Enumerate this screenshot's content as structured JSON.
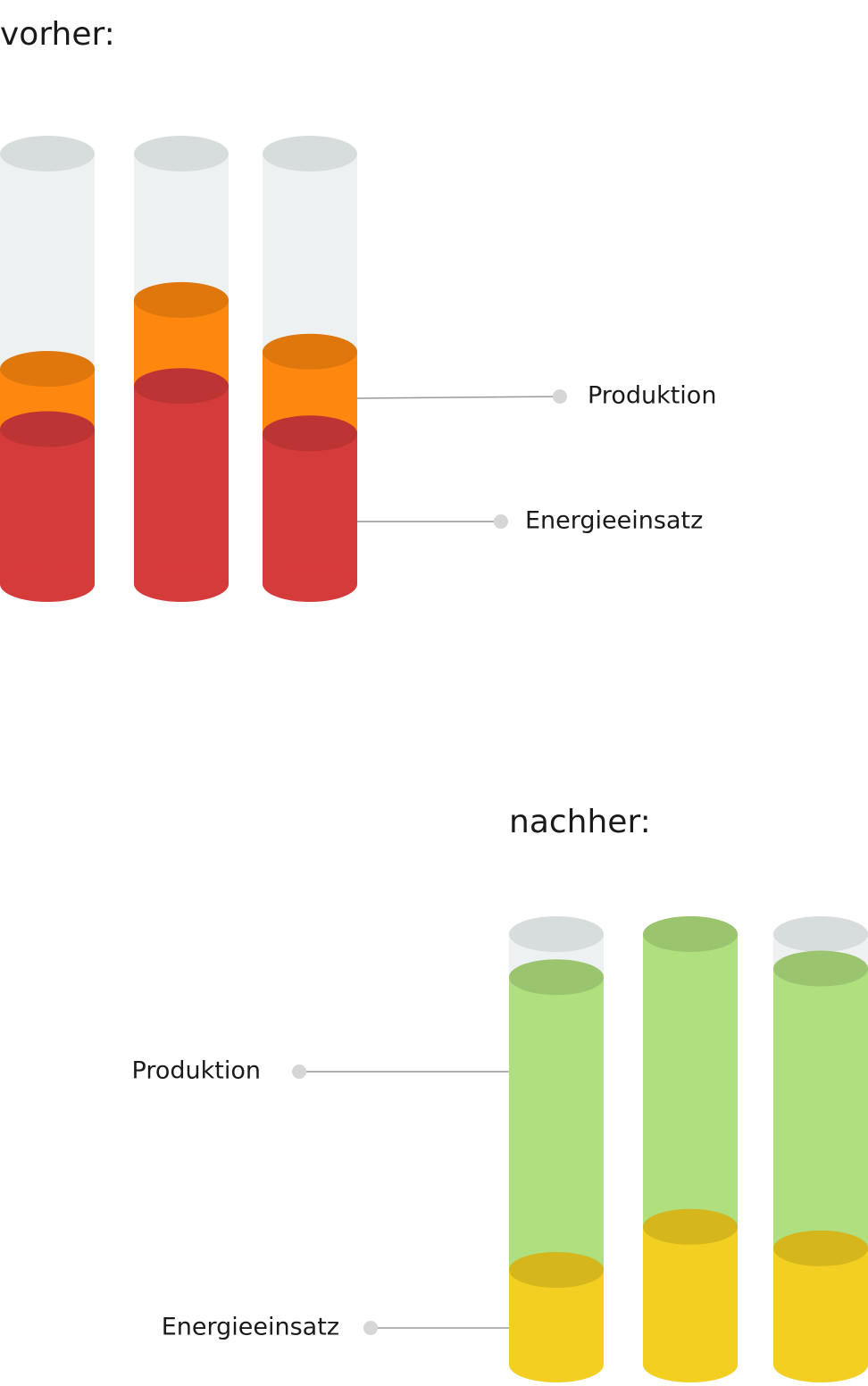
{
  "chart_data": [
    {
      "type": "cylinder",
      "title": "vorher:",
      "ylim": [
        0,
        100
      ],
      "series": [
        {
          "name": "Energieeinsatz",
          "color": "#d63b3b",
          "values": [
            36,
            46,
            35
          ]
        },
        {
          "name": "Produktion",
          "color": "#fd870f",
          "values": [
            14,
            20,
            19
          ]
        }
      ]
    },
    {
      "type": "cylinder",
      "title": "nachher:",
      "ylim": [
        0,
        100
      ],
      "series": [
        {
          "name": "Energieeinsatz",
          "color": "#f2cf21",
          "values": [
            22,
            32,
            27
          ]
        },
        {
          "name": "Produktion",
          "color": "#b0df7e",
          "values": [
            68,
            68,
            65
          ]
        }
      ]
    }
  ]
}
